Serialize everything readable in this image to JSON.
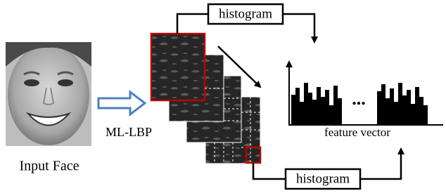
{
  "input_label": "Input Face",
  "method_label": "ML-LBP",
  "top_box": {
    "label": "histogram"
  },
  "bottom_box": {
    "label": "histogram"
  },
  "ellipsis": "...",
  "output_label": "feature vector"
}
